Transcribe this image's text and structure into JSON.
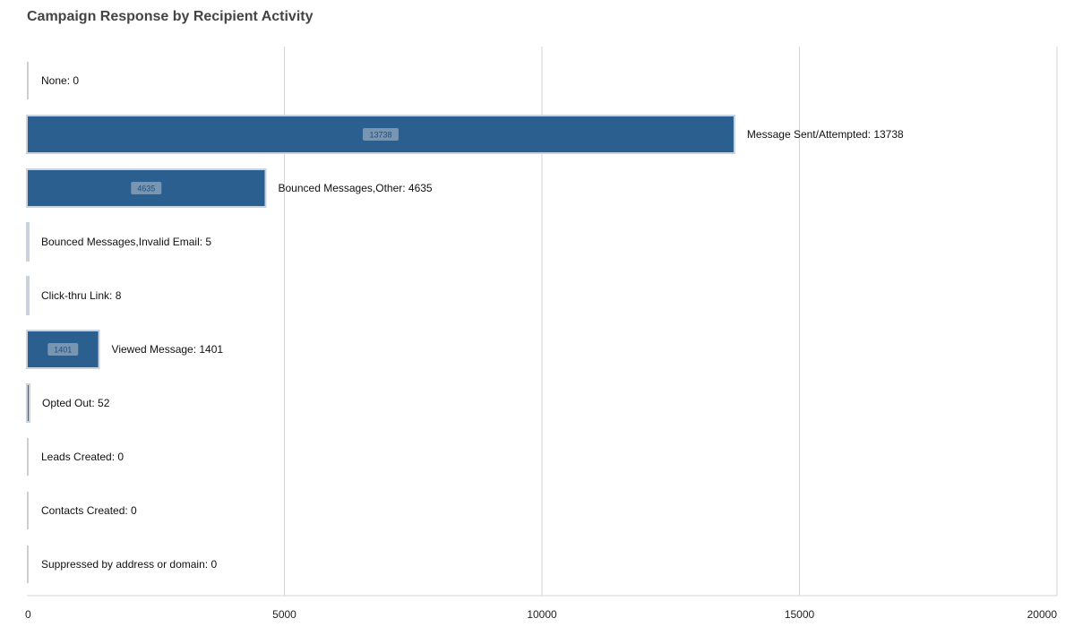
{
  "colors": {
    "bar": "#2a5f90",
    "bar_edge": "#c7d3de",
    "grid": "#d4d4d4",
    "inbar_badge": "#7895b2"
  },
  "chart_data": {
    "type": "bar",
    "orientation": "horizontal",
    "title": "Campaign Response by Recipient Activity",
    "xlabel": "",
    "ylabel": "",
    "xlim": [
      0,
      20000
    ],
    "x_ticks": [
      0,
      5000,
      10000,
      15000,
      20000
    ],
    "grid": true,
    "legend": "none",
    "bar_label_separator": ": ",
    "categories": [
      "None",
      "Message Sent/Attempted",
      "Bounced Messages,Other",
      "Bounced Messages,Invalid Email",
      "Click-thru Link",
      "Viewed Message",
      "Opted Out",
      "Leads Created",
      "Contacts Created",
      "Suppressed by address or domain"
    ],
    "values": [
      0,
      13738,
      4635,
      5,
      8,
      1401,
      52,
      0,
      0,
      0
    ],
    "inbar_labels": [
      "",
      "13738",
      "4635",
      "",
      "",
      "1401",
      "",
      "",
      "",
      ""
    ]
  }
}
